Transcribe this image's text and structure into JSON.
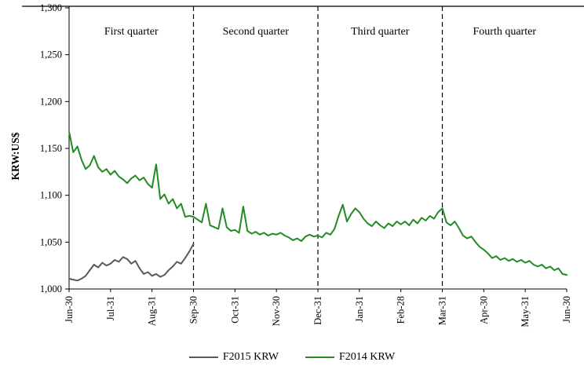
{
  "chart_data": {
    "type": "line",
    "title": "",
    "ylabel": "KRW:US$",
    "ylim": [
      1000,
      1300
    ],
    "grid": false,
    "legend_position": "bottom",
    "axis_color": "#000000",
    "ytick_values": [
      1000,
      1050,
      1100,
      1150,
      1200,
      1250,
      1300
    ],
    "ytick_labels": [
      "1,000",
      "1,050",
      "1,100",
      "1,150",
      "1,200",
      "1,250",
      "1,300"
    ],
    "xtick_labels": [
      "Jun-30",
      "Jul-31",
      "Aug-31",
      "Sep-30",
      "Oct-31",
      "Nov-30",
      "Dec-31",
      "Jan-31",
      "Feb-28",
      "Mar-31",
      "Apr-30",
      "May-31",
      "Jun-30"
    ],
    "quarter_labels": [
      "First quarter",
      "Second quarter",
      "Third quarter",
      "Fourth quarter"
    ],
    "quarter_boundaries": [
      0,
      3,
      6,
      9,
      12
    ],
    "series": [
      {
        "name": "F2015 KRW",
        "color": "#595959",
        "x_start": 0,
        "x_step": 0.1,
        "values": [
          1011,
          1010,
          1009,
          1011,
          1014,
          1020,
          1026,
          1023,
          1028,
          1025,
          1027,
          1031,
          1029,
          1034,
          1032,
          1027,
          1030,
          1022,
          1016,
          1018,
          1014,
          1016,
          1013,
          1015,
          1020,
          1024,
          1029,
          1027,
          1033,
          1040,
          1048
        ]
      },
      {
        "name": "F2014 KRW",
        "color": "#228B22",
        "x_start": 0,
        "x_step": 0.1,
        "values": [
          1168,
          1146,
          1152,
          1138,
          1128,
          1132,
          1142,
          1130,
          1125,
          1128,
          1122,
          1126,
          1120,
          1117,
          1113,
          1118,
          1121,
          1116,
          1119,
          1112,
          1108,
          1133,
          1096,
          1101,
          1091,
          1096,
          1086,
          1091,
          1077,
          1078,
          1077,
          1074,
          1071,
          1091,
          1068,
          1066,
          1064,
          1086,
          1066,
          1062,
          1063,
          1060,
          1088,
          1062,
          1059,
          1061,
          1058,
          1060,
          1057,
          1059,
          1058,
          1060,
          1057,
          1055,
          1052,
          1054,
          1051,
          1056,
          1058,
          1056,
          1057,
          1055,
          1060,
          1058,
          1064,
          1078,
          1090,
          1072,
          1080,
          1086,
          1082,
          1075,
          1070,
          1067,
          1072,
          1068,
          1065,
          1070,
          1067,
          1072,
          1069,
          1072,
          1068,
          1074,
          1070,
          1076,
          1073,
          1078,
          1075,
          1082,
          1086,
          1071,
          1068,
          1072,
          1065,
          1057,
          1054,
          1056,
          1050,
          1045,
          1042,
          1038,
          1033,
          1035,
          1031,
          1033,
          1030,
          1032,
          1029,
          1031,
          1028,
          1030,
          1026,
          1024,
          1026,
          1022,
          1024,
          1020,
          1022,
          1016,
          1015
        ]
      }
    ]
  }
}
